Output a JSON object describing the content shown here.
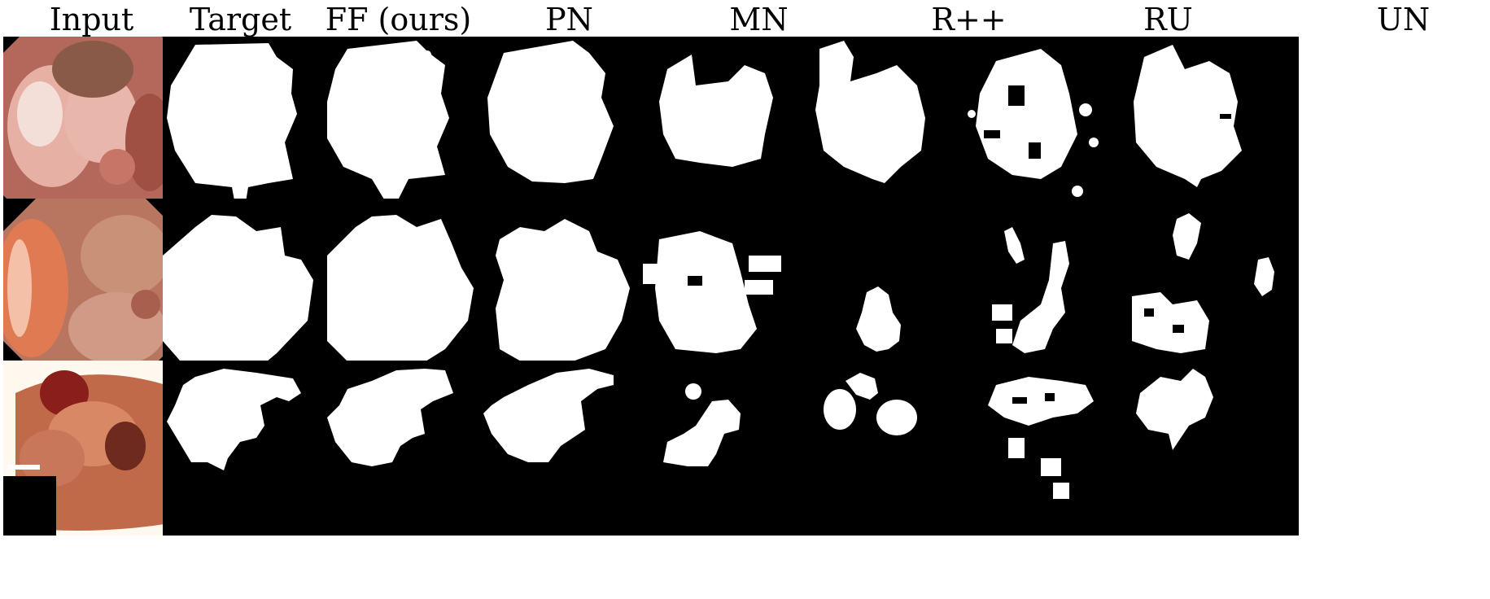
{
  "figure": {
    "columns": [
      {
        "key": "input",
        "label": "Input"
      },
      {
        "key": "target",
        "label": "Target"
      },
      {
        "key": "ff",
        "label": "FF (ours)"
      },
      {
        "key": "pn",
        "label": "PN"
      },
      {
        "key": "mn",
        "label": "MN"
      },
      {
        "key": "rpp",
        "label": "R++"
      },
      {
        "key": "ru",
        "label": "RU"
      },
      {
        "key": "un",
        "label": "UN"
      }
    ],
    "rows": [
      {
        "key": "sample-1"
      },
      {
        "key": "sample-2"
      },
      {
        "key": "sample-3"
      }
    ],
    "colors": {
      "mask_foreground": "#ffffff",
      "mask_background": "#000000",
      "tissue": "#c87a68"
    }
  }
}
